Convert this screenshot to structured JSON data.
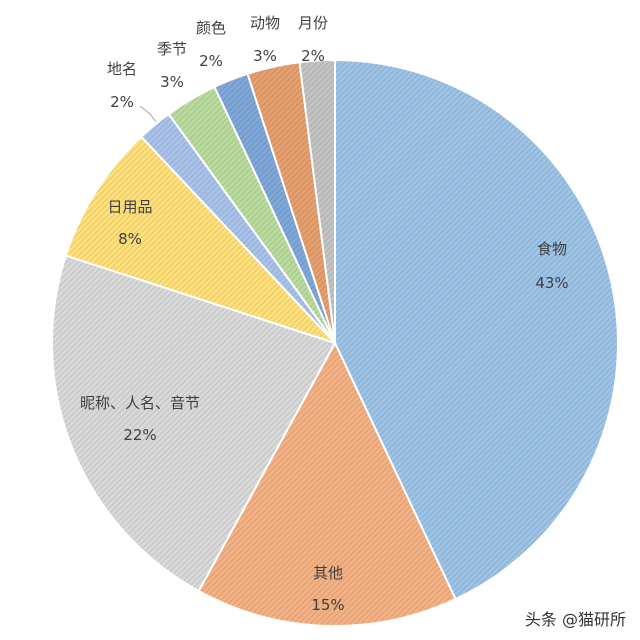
{
  "chart_data": {
    "type": "pie",
    "title": "",
    "slices": [
      {
        "label": "食物",
        "value": 43,
        "value_label": "43%",
        "color": "#9dc3e6"
      },
      {
        "label": "其他",
        "value": 15,
        "value_label": "15%",
        "color": "#f4b183"
      },
      {
        "label": "昵称、人名、音节",
        "value": 22,
        "value_label": "22%",
        "color": "#d9d9d9"
      },
      {
        "label": "日用品",
        "value": 8,
        "value_label": "8%",
        "color": "#ffe07a"
      },
      {
        "label": "地名",
        "value": 2,
        "value_label": "2%",
        "color": "#a9c2ea"
      },
      {
        "label": "季节",
        "value": 3,
        "value_label": "3%",
        "color": "#b9dc9e"
      },
      {
        "label": "颜色",
        "value": 2,
        "value_label": "2%",
        "color": "#7fa7d8"
      },
      {
        "label": "动物",
        "value": 3,
        "value_label": "3%",
        "color": "#e69f6e"
      },
      {
        "label": "月份",
        "value": 2,
        "value_label": "2%",
        "color": "#c3c3c3"
      }
    ],
    "legend": "none",
    "data_labels": "category and percentage"
  },
  "watermark": "头条 @猫研所"
}
